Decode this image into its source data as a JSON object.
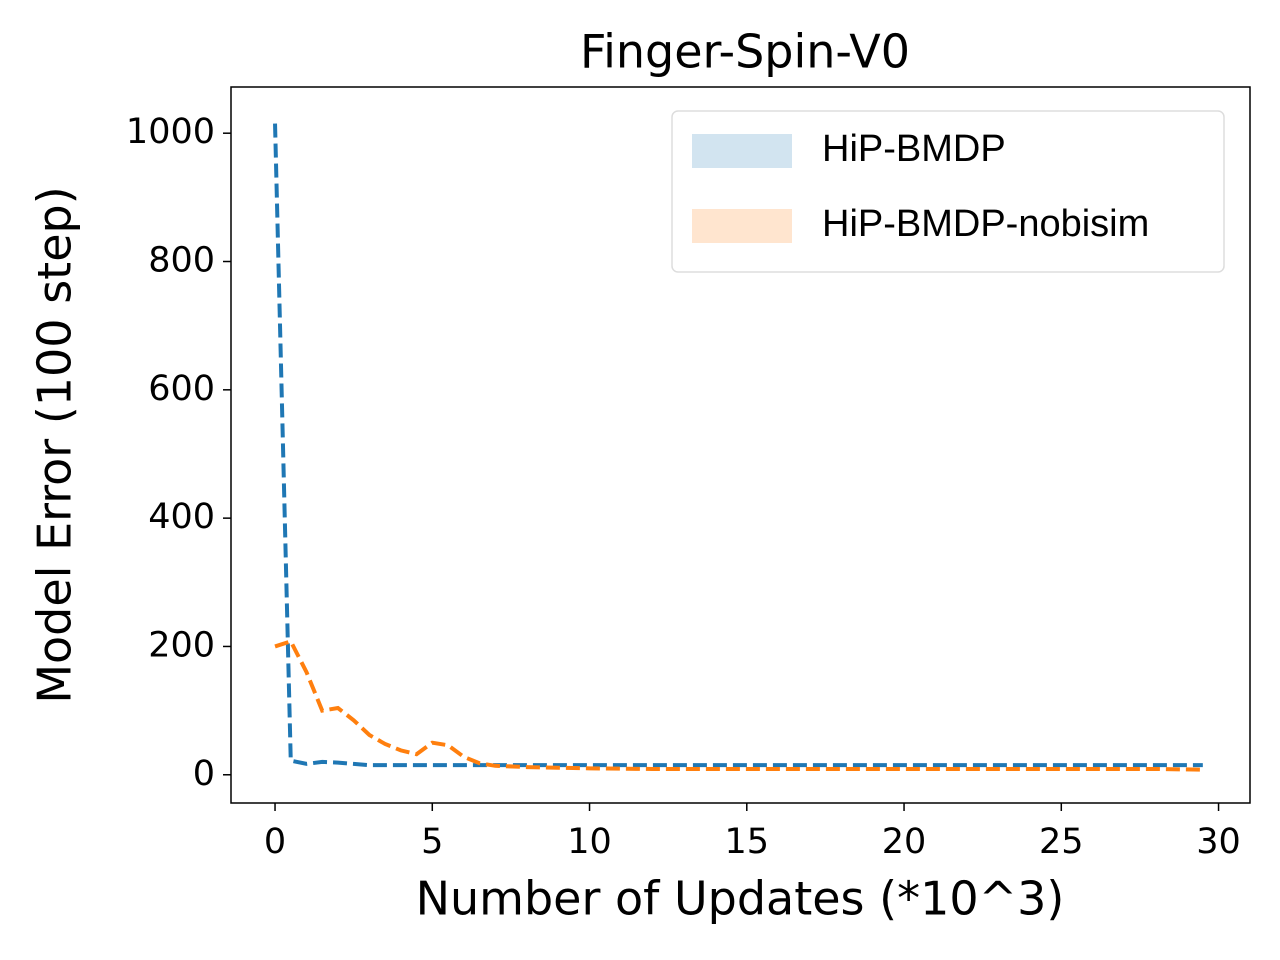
{
  "chart_data": {
    "type": "line",
    "title": "Finger-Spin-V0",
    "x_label": "Number of Updates (*10^3)",
    "y_label": "Model Error (100 step)",
    "x": [
      0,
      0.5,
      1,
      1.5,
      2,
      2.5,
      3,
      3.5,
      4,
      4.5,
      5,
      5.5,
      6,
      6.5,
      7,
      8,
      9,
      10,
      12,
      14,
      16,
      18,
      20,
      22,
      24,
      26,
      28,
      29.5
    ],
    "series": [
      {
        "name": "HiP-BMDP",
        "color": "#1f77b4",
        "values": [
          1015,
          22,
          17,
          20,
          19,
          17,
          15,
          15,
          15,
          15,
          15,
          15,
          15,
          15,
          15,
          15,
          15,
          15,
          15,
          15,
          15,
          15,
          15,
          15,
          15,
          15,
          15,
          15
        ]
      },
      {
        "name": "HiP-BMDP-nobisim",
        "color": "#ff7f0e",
        "values": [
          200,
          208,
          160,
          100,
          104,
          85,
          62,
          48,
          38,
          32,
          50,
          46,
          28,
          18,
          14,
          12,
          11,
          10,
          9,
          9,
          9,
          9,
          9,
          9,
          9,
          9,
          9,
          8
        ]
      }
    ],
    "xlim": [
      -1.4,
      31.0
    ],
    "ylim": [
      -44,
      1072
    ],
    "xticks": [
      0,
      5,
      10,
      15,
      20,
      25,
      30
    ],
    "yticks": [
      0,
      200,
      400,
      600,
      800,
      1000
    ],
    "legend": "upper-right"
  }
}
